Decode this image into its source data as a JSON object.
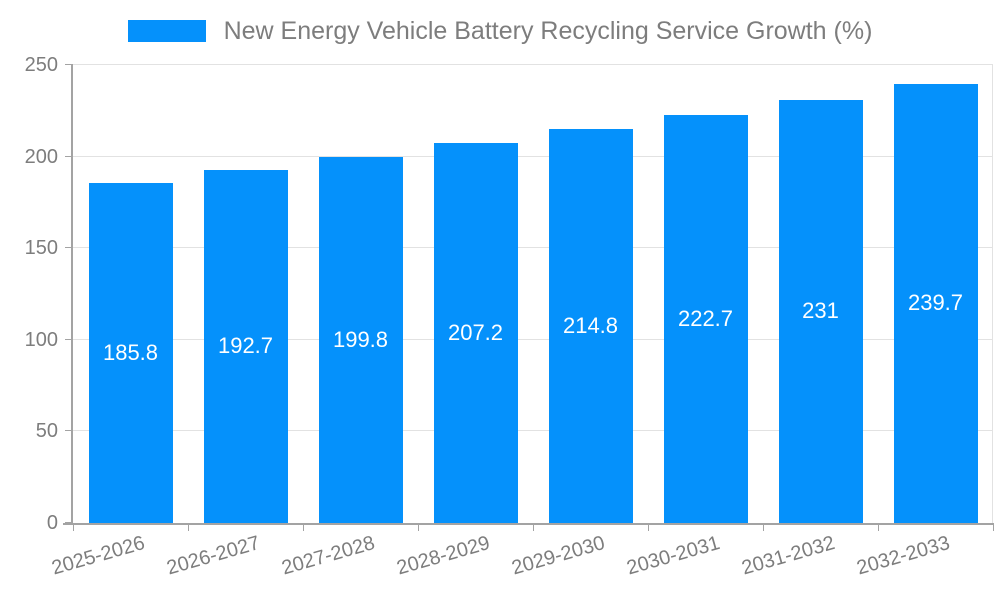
{
  "legend": {
    "label": "New Energy Vehicle Battery Recycling Service Growth (%)"
  },
  "colors": {
    "bar": "#0591fb",
    "grid": "#e2e2e2",
    "axis": "#a3a3a3",
    "tick_text": "#7d7d7d",
    "value_text": "#ffffff",
    "background": "#ffffff"
  },
  "chart_data": {
    "type": "bar",
    "title": "New Energy Vehicle Battery Recycling Service Growth (%)",
    "categories": [
      "2025-2026",
      "2026-2027",
      "2027-2028",
      "2028-2029",
      "2029-2030",
      "2030-2031",
      "2031-2032",
      "2032-2033"
    ],
    "values": [
      185.8,
      192.7,
      199.8,
      207.2,
      214.8,
      222.7,
      231,
      239.7
    ],
    "value_labels": [
      "185.8",
      "192.7",
      "199.8",
      "207.2",
      "214.8",
      "222.7",
      "231",
      "239.7"
    ],
    "xlabel": "",
    "ylabel": "",
    "ylim": [
      0,
      250
    ],
    "yticks": [
      0,
      50,
      100,
      150,
      200,
      250
    ],
    "grid": true,
    "legend_position": "top",
    "value_label_position": "center-of-bar",
    "x_label_rotation_deg": -16
  }
}
